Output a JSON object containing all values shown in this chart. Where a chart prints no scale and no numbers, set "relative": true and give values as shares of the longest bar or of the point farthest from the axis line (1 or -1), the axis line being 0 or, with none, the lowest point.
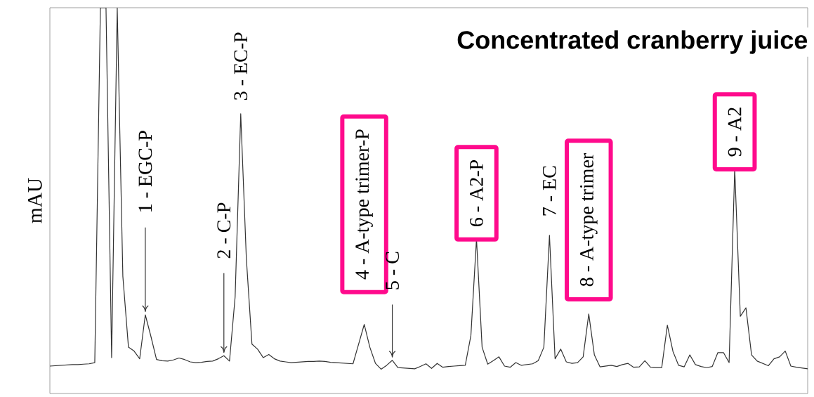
{
  "chart_data": {
    "type": "line",
    "relative": true,
    "title": "Concentrated cranberry juice",
    "ylabel": "mAU",
    "categories": [
      null,
      null,
      null,
      null,
      null,
      null,
      null,
      null,
      null,
      null,
      null,
      null,
      null,
      null,
      null,
      null,
      null,
      null,
      null,
      null,
      null,
      null,
      null,
      null,
      null,
      null,
      null,
      null,
      null,
      null,
      null,
      null,
      null,
      null,
      null,
      null,
      null,
      null,
      null,
      null,
      null,
      null,
      null,
      null,
      null,
      null,
      null,
      null,
      null,
      null,
      null,
      null,
      null,
      null,
      null,
      null,
      null,
      null,
      null,
      null,
      null,
      null,
      null,
      null,
      null,
      null,
      null,
      null,
      null,
      null,
      null,
      null,
      null,
      null,
      null,
      null,
      null,
      null,
      null,
      null,
      null,
      null,
      null,
      null,
      null,
      null,
      null,
      null,
      null,
      null,
      null,
      null,
      null,
      null,
      null,
      null,
      null,
      null,
      null,
      null,
      null,
      null,
      null,
      null,
      null,
      null,
      null,
      null,
      null,
      null,
      null,
      null,
      null,
      null,
      null,
      null,
      null,
      null,
      null,
      null,
      null,
      null,
      null,
      null,
      null,
      null,
      null,
      null,
      null,
      null,
      null,
      null,
      null,
      null,
      null,
      null
    ],
    "series": [
      {
        "color": "#333333",
        "values": [
          0.071,
          0.072,
          0.073,
          0.074,
          0.075,
          0.075,
          0.076,
          0.077,
          0.08,
          1,
          1,
          0.093,
          1,
          0.304,
          0.12,
          0.11,
          0.09,
          0.204,
          0.148,
          0.088,
          0.085,
          0.084,
          0.087,
          0.092,
          0.088,
          0.082,
          0.08,
          0.081,
          0.083,
          0.084,
          0.09,
          0.098,
          0.084,
          0.25,
          0.725,
          0.35,
          0.128,
          0.115,
          0.093,
          0.101,
          0.09,
          0.084,
          0.082,
          0.08,
          0.081,
          0.082,
          0.083,
          0.083,
          0.084,
          0.083,
          0.081,
          0.08,
          0.079,
          0.078,
          0.077,
          0.128,
          0.179,
          0.12,
          0.078,
          0.063,
          0.073,
          0.086,
          0.067,
          0.066,
          0.065,
          0.064,
          0.07,
          0.077,
          0.065,
          0.078,
          0.068,
          0.07,
          0.071,
          0.072,
          0.073,
          0.15,
          0.401,
          0.12,
          0.076,
          0.085,
          0.095,
          0.071,
          0.068,
          0.08,
          0.073,
          0.075,
          0.077,
          0.085,
          0.12,
          0.41,
          0.09,
          0.115,
          0.082,
          0.078,
          0.08,
          0.095,
          0.206,
          0.1,
          0.069,
          0.071,
          0.073,
          0.07,
          0.075,
          0.078,
          0.068,
          0.069,
          0.085,
          0.068,
          0.067,
          0.067,
          0.177,
          0.109,
          0.073,
          0.069,
          0.1,
          0.075,
          0.07,
          0.067,
          0.07,
          0.106,
          0.106,
          0.08,
          0.583,
          0.2,
          0.222,
          0.1,
          0.084,
          0.078,
          0.072,
          0.09,
          0.095,
          0.11,
          0.071,
          0.068,
          0.066,
          0.064
        ]
      }
    ],
    "annotations": [
      "1 - EGC-P",
      "2 - C-P",
      "3 - EC-P",
      "4 - A-type trimer-P",
      "5 - C",
      "6 - A2-P",
      "7 - EC",
      "8 - A-type trimer",
      "9 - A2"
    ]
  }
}
